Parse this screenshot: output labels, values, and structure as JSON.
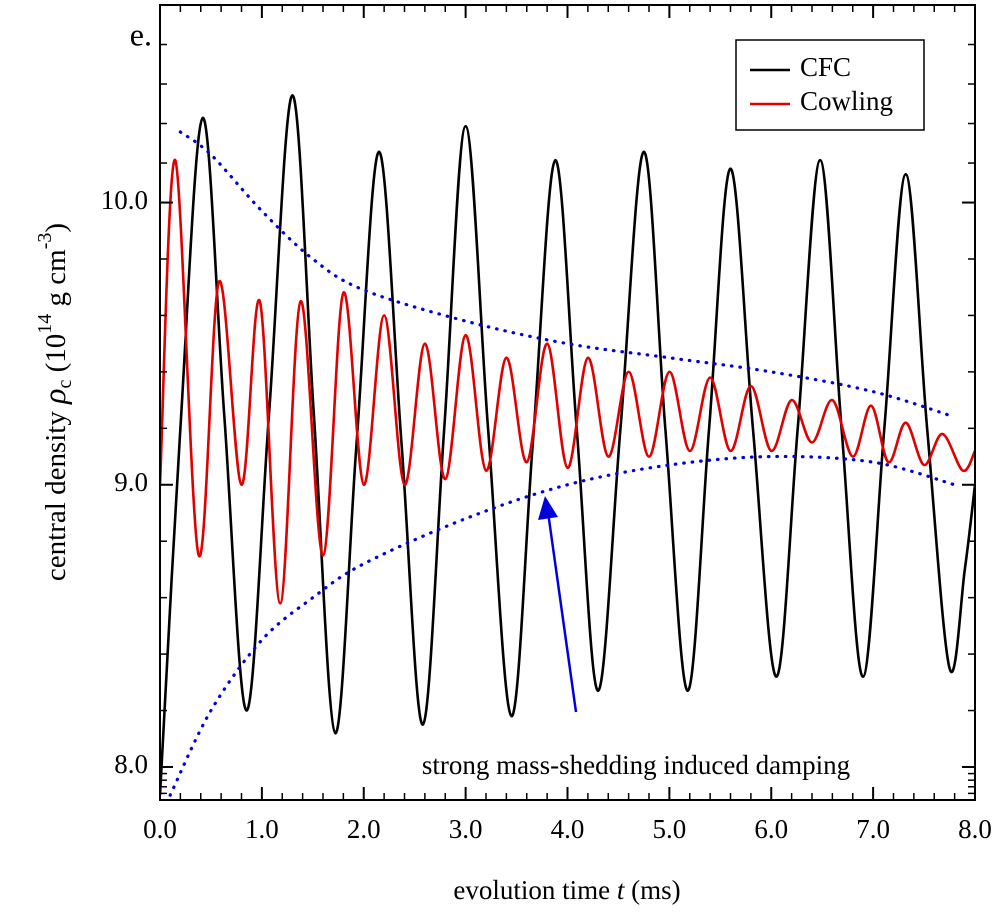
{
  "chart_data": {
    "type": "line",
    "fragment": "e.",
    "xlabel": [
      "evolution time ",
      "t",
      " (ms)"
    ],
    "ylabel": [
      "central density ",
      "ρ",
      "c",
      " (10",
      "14",
      " g cm",
      "-3",
      ")"
    ],
    "xlim": [
      0,
      8.0
    ],
    "ylim": [
      7.883,
      10.7
    ],
    "xticks": [
      {
        "value": 0,
        "label": "0.0"
      },
      {
        "value": 1,
        "label": "1.0"
      },
      {
        "value": 2,
        "label": "2.0"
      },
      {
        "value": 3,
        "label": "3.0"
      },
      {
        "value": 4,
        "label": "4.0"
      },
      {
        "value": 5,
        "label": "5.0"
      },
      {
        "value": 6,
        "label": "6.0"
      },
      {
        "value": 7,
        "label": "7.0"
      },
      {
        "value": 8,
        "label": "8.0"
      }
    ],
    "yticks": [
      {
        "value": 8,
        "label": "8.0"
      },
      {
        "value": 9,
        "label": "9.0"
      },
      {
        "value": 10,
        "label": "10.0"
      }
    ],
    "minor_ticks_per_interval": 5,
    "legend": "upper right",
    "annotation": "strong mass-shedding induced damping",
    "annotation_color": "#0000dd",
    "fragment_color": "#e00000",
    "series": [
      {
        "name": "CFC",
        "color": "#000000",
        "style": "solid",
        "x": [
          0,
          0.2,
          0.42,
          0.63,
          0.85,
          1.07,
          1.3,
          1.51,
          1.72,
          1.93,
          2.15,
          2.37,
          2.58,
          2.79,
          3.0,
          3.22,
          3.45,
          3.66,
          3.88,
          4.09,
          4.3,
          4.52,
          4.75,
          4.96,
          5.18,
          5.39,
          5.6,
          5.82,
          6.05,
          6.26,
          6.48,
          6.69,
          6.9,
          7.11,
          7.32,
          7.53,
          7.75,
          7.9,
          8.0
        ],
        "values": [
          7.9,
          9.2,
          10.3,
          9.25,
          8.2,
          9.25,
          10.38,
          9.25,
          8.12,
          9.15,
          10.18,
          9.15,
          8.15,
          9.2,
          10.27,
          9.2,
          8.18,
          9.15,
          10.15,
          9.2,
          8.27,
          9.2,
          10.18,
          9.2,
          8.27,
          9.2,
          10.12,
          9.2,
          8.32,
          9.2,
          10.15,
          9.2,
          8.32,
          9.2,
          10.1,
          9.2,
          8.35,
          8.7,
          9.0
        ]
      },
      {
        "name": "Cowling",
        "color": "#e00000",
        "style": "solid",
        "x": [
          0,
          0.15,
          0.38,
          0.58,
          0.8,
          0.98,
          1.18,
          1.38,
          1.6,
          1.8,
          2.0,
          2.2,
          2.4,
          2.6,
          2.8,
          3.0,
          3.2,
          3.4,
          3.6,
          3.8,
          4.0,
          4.2,
          4.4,
          4.6,
          4.8,
          5.0,
          5.2,
          5.4,
          5.6,
          5.8,
          6.0,
          6.2,
          6.4,
          6.6,
          6.8,
          6.98,
          7.15,
          7.32,
          7.5,
          7.68,
          7.88,
          8.0
        ],
        "values": [
          9.0,
          10.15,
          8.75,
          9.72,
          9.0,
          9.65,
          8.58,
          9.65,
          8.75,
          9.68,
          9.0,
          9.6,
          9.0,
          9.5,
          9.02,
          9.53,
          9.05,
          9.45,
          9.08,
          9.5,
          9.06,
          9.45,
          9.1,
          9.4,
          9.1,
          9.4,
          9.12,
          9.38,
          9.12,
          9.35,
          9.12,
          9.3,
          9.15,
          9.3,
          9.1,
          9.28,
          9.08,
          9.22,
          9.07,
          9.18,
          9.05,
          9.12
        ]
      },
      {
        "color": "#0000dd",
        "style": "dotted",
        "x": [
          0.2,
          0.5,
          1.0,
          1.5,
          2.0,
          3.0,
          4.0,
          5.0,
          6.0,
          7.0,
          7.8
        ],
        "values": [
          10.25,
          10.17,
          9.97,
          9.8,
          9.69,
          9.58,
          9.5,
          9.45,
          9.4,
          9.33,
          9.24
        ]
      },
      {
        "color": "#0000dd",
        "style": "dotted",
        "x": [
          0.1,
          0.5,
          1.0,
          1.5,
          2.0,
          3.0,
          4.0,
          5.0,
          6.0,
          7.0,
          7.8
        ],
        "values": [
          7.9,
          8.2,
          8.45,
          8.6,
          8.72,
          8.88,
          9.0,
          9.07,
          9.1,
          9.08,
          9.0
        ]
      }
    ]
  }
}
